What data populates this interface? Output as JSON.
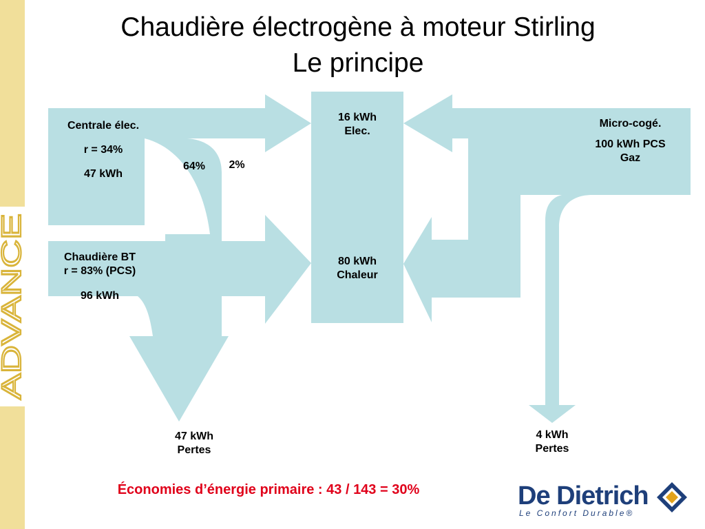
{
  "slide": {
    "title_line1": "Chaudière électrogène à moteur Stirling",
    "title_line2": "Le principe",
    "side_word": "ADVANCE",
    "economy": "Économies d’énergie primaire : 43 / 143 = 30%",
    "logo_name": "De Dietrich",
    "logo_tagline": "Le Confort Durable®"
  },
  "diagram": {
    "left_top": {
      "line1": "Centrale élec.",
      "line2": "r = 34%",
      "line3": "47 kWh"
    },
    "left_bottom": {
      "line1": "Chaudière BT",
      "line2": "r = 83% (PCS)",
      "line3": "96 kWh"
    },
    "pct_64": "64%",
    "pct_2": "2%",
    "center_top": {
      "line1": "16 kWh",
      "line2": "Elec."
    },
    "center_bottom": {
      "line1": "80 kWh",
      "line2": "Chaleur"
    },
    "right": {
      "line1": "Micro-cogé.",
      "line2": "100 kWh PCS",
      "line3": "Gaz"
    },
    "loss_left": {
      "line1": "47 kWh",
      "line2": "Pertes"
    },
    "loss_right": {
      "line1": "4 kWh",
      "line2": "Pertes"
    }
  },
  "colors": {
    "flow": "#b9dfe3",
    "side_band": "#f1df9a",
    "side_word": "#d9b43a",
    "economy_text": "#e0001a",
    "logo_blue": "#1e3f7a",
    "logo_gold": "#e2a21c"
  }
}
